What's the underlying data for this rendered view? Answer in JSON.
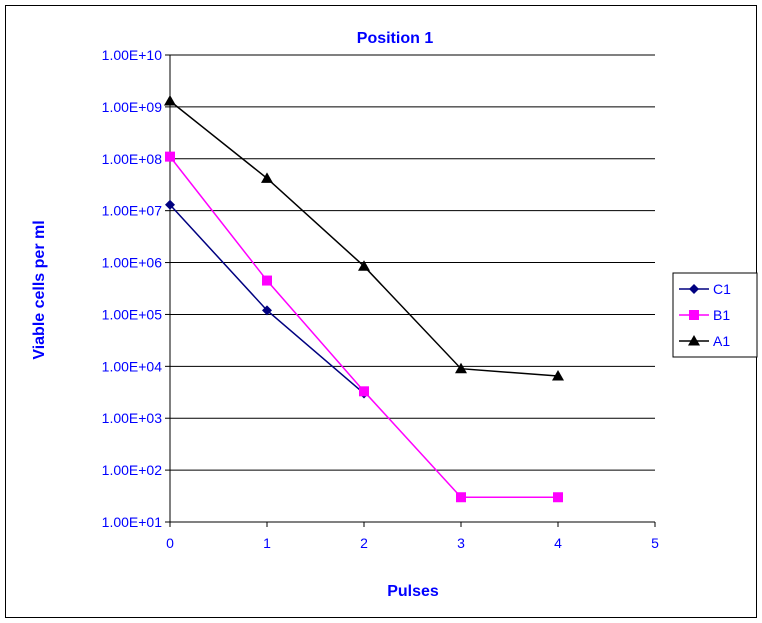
{
  "chart_data": {
    "type": "line",
    "title": "Position 1",
    "xlabel": "Pulses",
    "ylabel": "Viable cells per ml",
    "y_scale": "log",
    "xlim": [
      0,
      5
    ],
    "ylim": [
      10,
      10000000000
    ],
    "x_ticks": [
      "0",
      "1",
      "2",
      "3",
      "4",
      "5"
    ],
    "y_ticks": [
      "1.00E+01",
      "1.00E+02",
      "1.00E+03",
      "1.00E+04",
      "1.00E+05",
      "1.00E+06",
      "1.00E+07",
      "1.00E+08",
      "1.00E+09",
      "1.00E+10"
    ],
    "grid": "horizontal",
    "legend_position": "right",
    "series": [
      {
        "name": "C1",
        "color": "#000080",
        "marker": "diamond",
        "x": [
          0,
          1,
          2
        ],
        "y": [
          13000000,
          120000,
          3000
        ]
      },
      {
        "name": "B1",
        "color": "#ff00ff",
        "marker": "square",
        "x": [
          0,
          1,
          2,
          3,
          4
        ],
        "y": [
          110000000,
          450000,
          3300,
          30,
          30
        ]
      },
      {
        "name": "A1",
        "color": "#000000",
        "marker": "triangle",
        "x": [
          0,
          1,
          2,
          3,
          4
        ],
        "y": [
          1300000000,
          42000000,
          850000,
          9000,
          6500
        ]
      }
    ]
  }
}
